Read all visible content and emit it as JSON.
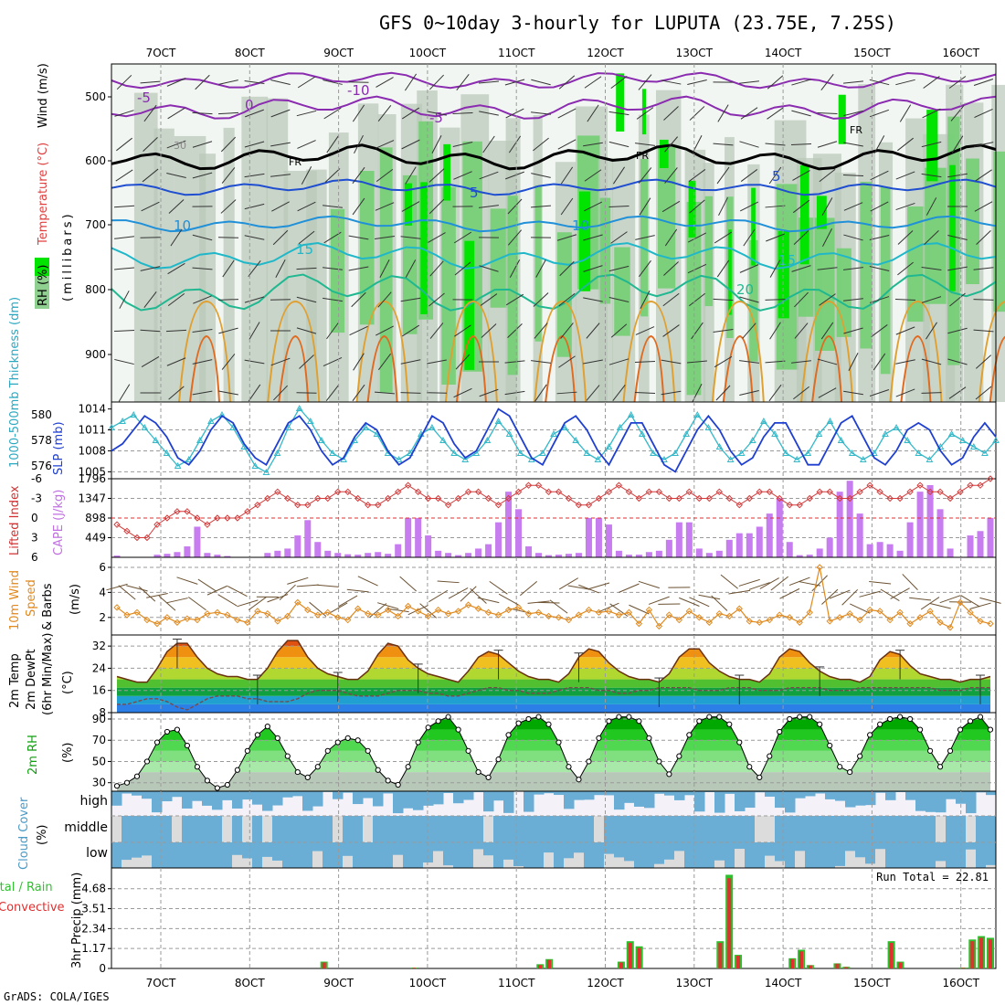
{
  "title": "GFS 0~10day 3-hourly for LUPUTA (23.75E, 7.25S)",
  "footer": "GrADS: COLA/IGES",
  "x_labels": [
    "7OCT",
    "8OCT",
    "9OCT",
    "10OCT",
    "11OCT",
    "12OCT",
    "13OCT",
    "14OCT",
    "15OCT",
    "16OCT"
  ],
  "colors": {
    "rh_green": "#00e400",
    "rh_mid": "#6ecf6e",
    "rh_grey": "#b9c7b9",
    "slp": "#1f3fd0",
    "thickness": "#35b8c8",
    "lifted": "#d33a3a",
    "cape": "#c77cf0",
    "wind": "#e08a20",
    "tmax": "#e05010",
    "rh2m": "#00c000",
    "cloud": "#6aaed6",
    "cloud_bg": "#dcdcdc",
    "precip_total": "#2dc02d",
    "precip_conv": "#e03030"
  },
  "panels": {
    "upper": {
      "label_rh": "RH (%)",
      "label_temp": "Temperature (°C)",
      "label_wind": "Wind (m/s)",
      "label_units": "(millibars)",
      "y_ticks": [
        "500",
        "600",
        "700",
        "800",
        "900"
      ],
      "contour_labels": {
        "t_m10": "-10",
        "t_m5a": "-5",
        "t_m5b": "-5",
        "t_0": "0",
        "t_5a": "5",
        "t_5b": "5",
        "t_10a": "10",
        "t_10b": "10",
        "t_15a": "15",
        "t_15b": "15",
        "t_20": "20",
        "fr1": "FR",
        "fr2": "FR",
        "fr3": "FR",
        "rh30": "30"
      }
    },
    "thick": {
      "label_left": "1000-500mb Thickness (dm)",
      "label_right": "SLP (mb)",
      "left_ticks": [
        "580",
        "578",
        "576"
      ],
      "right_ticks": [
        "1014",
        "1011",
        "1008",
        "1005"
      ]
    },
    "cape": {
      "label_left": "Lifted Index",
      "label_right": "CAPE (J/kg)",
      "left_ticks": [
        "-6",
        "-3",
        "0",
        "3",
        "6"
      ],
      "right_ticks": [
        "1796",
        "1347",
        "898",
        "449"
      ]
    },
    "wind": {
      "label_a": "10m Wind",
      "label_b": "Speed",
      "label_c": "& Barbs",
      "label_units": "(m/s)",
      "ticks": [
        "6",
        "4",
        "2"
      ]
    },
    "temp": {
      "label_a": "2m Temp",
      "label_b": "2m DewPt",
      "label_c": "(6hr Min/Max)",
      "label_units": "(°C)",
      "ticks": [
        "32",
        "24",
        "16",
        "8"
      ]
    },
    "rh": {
      "label_a": "2m RH",
      "label_units": "(%)",
      "ticks": [
        "90",
        "70",
        "50",
        "30"
      ]
    },
    "cloud": {
      "label_a": "Cloud Cover",
      "label_units": "(%)",
      "levels": [
        "high",
        "middle",
        "low"
      ]
    },
    "precip": {
      "label_a": "Total / Rain",
      "label_b": "Convective",
      "label_units": "3hr Precip (mm)",
      "ticks": [
        "4.68",
        "3.51",
        "2.34",
        "1.17",
        "0"
      ],
      "run_total": "Run Total = 22.81"
    }
  },
  "chart_data": [
    {
      "type": "line",
      "title": "1000-500mb Thickness (dm) / SLP (mb)",
      "x_start": "2020-10-06T12:00",
      "x_step_hours": 3,
      "series": [
        {
          "name": "SLP (mb)",
          "values": [
            1008,
            1009,
            1011,
            1013,
            1012,
            1010,
            1007,
            1006,
            1008,
            1011,
            1013,
            1012,
            1009,
            1007,
            1006,
            1009,
            1012,
            1013,
            1011,
            1008,
            1006,
            1007,
            1010,
            1012,
            1011,
            1008,
            1006,
            1007,
            1010,
            1013,
            1012,
            1009,
            1007,
            1008,
            1011,
            1014,
            1013,
            1010,
            1007,
            1006,
            1009,
            1012,
            1013,
            1011,
            1008,
            1006,
            1009,
            1012,
            1012,
            1009,
            1006,
            1005,
            1008,
            1011,
            1013,
            1011,
            1008,
            1006,
            1007,
            1010,
            1012,
            1012,
            1009,
            1006,
            1006,
            1009,
            1012,
            1013,
            1010,
            1007,
            1006,
            1008,
            1011,
            1012,
            1011,
            1008,
            1006,
            1007,
            1010,
            1012,
            1010
          ]
        },
        {
          "name": "1000-500mb Thickness (dm)",
          "values": [
            579,
            579.5,
            580,
            579,
            578,
            577,
            576,
            576.5,
            578,
            579.5,
            580,
            579,
            577.5,
            576,
            575.5,
            577,
            579,
            580.5,
            579.5,
            578,
            577,
            576.5,
            578,
            579,
            578.5,
            577,
            576.5,
            577,
            578.5,
            579,
            578,
            577,
            576.5,
            577,
            578,
            579.5,
            578.5,
            577,
            576.5,
            577,
            578.5,
            579,
            578,
            577,
            576.5,
            577.5,
            579,
            580,
            578.5,
            577,
            576.5,
            577,
            578.5,
            580,
            579,
            577.5,
            576.5,
            577,
            578,
            579.5,
            578.5,
            577,
            576.5,
            577,
            578.5,
            579.5,
            578,
            577,
            576.5,
            577,
            578.5,
            579,
            578,
            577,
            576.5,
            577.5,
            578.5,
            578,
            577.5,
            577,
            578
          ]
        }
      ],
      "ylim_left": [
        575,
        581
      ],
      "ylim_right": [
        1004,
        1015
      ]
    },
    {
      "type": "bar",
      "title": "Lifted Index / CAPE (J/kg)",
      "x_start": "2020-10-06T12:00",
      "x_step_hours": 3,
      "series": [
        {
          "name": "CAPE (J/kg)",
          "values": [
            40,
            0,
            0,
            0,
            60,
            80,
            120,
            250,
            700,
            100,
            60,
            30,
            0,
            0,
            0,
            100,
            150,
            200,
            500,
            850,
            350,
            150,
            100,
            70,
            60,
            100,
            120,
            80,
            300,
            900,
            900,
            500,
            150,
            100,
            50,
            100,
            200,
            300,
            800,
            1500,
            1100,
            250,
            100,
            50,
            60,
            80,
            100,
            900,
            900,
            750,
            150,
            60,
            60,
            120,
            150,
            400,
            800,
            800,
            200,
            100,
            150,
            400,
            550,
            550,
            700,
            1000,
            1350,
            350,
            50,
            60,
            200,
            450,
            1500,
            1750,
            1000,
            300,
            350,
            300,
            150,
            800,
            1500,
            1650,
            1100,
            200,
            0,
            500,
            600,
            900
          ]
        },
        {
          "name": "Lifted Index",
          "values": [
            1,
            2,
            3,
            3,
            1,
            0,
            -1,
            -1,
            0,
            1,
            0,
            0,
            0,
            -1,
            -2,
            -3,
            -4,
            -3,
            -2,
            -2,
            -3,
            -3,
            -4,
            -4,
            -3,
            -2,
            -2,
            -3,
            -4,
            -5,
            -4,
            -3,
            -3,
            -2,
            -3,
            -4,
            -4,
            -3,
            -2,
            -3,
            -4,
            -5,
            -5,
            -4,
            -4,
            -3,
            -2,
            -2,
            -3,
            -4,
            -5,
            -4,
            -3,
            -4,
            -4,
            -3,
            -3,
            -4,
            -3,
            -3,
            -4,
            -3,
            -2,
            -3,
            -4,
            -4,
            -3,
            -2,
            -2,
            -3,
            -4,
            -4,
            -3,
            -3,
            -4,
            -5,
            -4,
            -3,
            -3,
            -4,
            -5,
            -4,
            -4,
            -3,
            -4,
            -5,
            -5,
            -6
          ]
        }
      ],
      "ylim_left": [
        6,
        -6
      ],
      "ylim_right": [
        0,
        1796
      ]
    },
    {
      "type": "line",
      "title": "10m Wind Speed & Barbs (m/s)",
      "x_start": "2020-10-06T12:00",
      "x_step_hours": 3,
      "series": [
        {
          "name": "10m Wind Speed (m/s)",
          "values": [
            2.8,
            2.2,
            2.4,
            1.8,
            1.5,
            2.0,
            1.6,
            1.9,
            1.8,
            2.3,
            2.4,
            2.2,
            1.8,
            1.6,
            2.5,
            2.3,
            1.7,
            2.1,
            3.2,
            2.6,
            2.2,
            2.4,
            2.0,
            1.8,
            2.7,
            2.3,
            2.2,
            2.6,
            2.1,
            2.9,
            2.5,
            2.1,
            2.6,
            2.3,
            2.5,
            3.0,
            2.7,
            2.4,
            2.2,
            2.6,
            2.8,
            2.3,
            2.4,
            2.1,
            2.0,
            1.8,
            2.2,
            2.6,
            2.4,
            2.5,
            2.2,
            2.4,
            1.5,
            2.6,
            1.3,
            2.2,
            1.8,
            2.5,
            2.0,
            1.6,
            2.3,
            2.1,
            2.7,
            1.7,
            1.6,
            1.8,
            2.2,
            2.0,
            1.6,
            2.4,
            6.0,
            1.7,
            2.0,
            2.3,
            1.8,
            2.6,
            2.5,
            1.8,
            2.4,
            1.5,
            2.0,
            2.5,
            1.6,
            1.2,
            3.2,
            2.4,
            1.7,
            1.5
          ]
        }
      ],
      "ylim": [
        0.6,
        6.8
      ]
    },
    {
      "type": "area",
      "title": "2m Temp / 2m DewPt (6hr Min/Max) (°C)",
      "x_start": "2020-10-06T12:00",
      "x_step_hours": 3,
      "series": [
        {
          "name": "2m Temp (°C)",
          "values": [
            21,
            20,
            19,
            19,
            24,
            30,
            33,
            33,
            28,
            24,
            22,
            21,
            21,
            20,
            20,
            24,
            30,
            34,
            34,
            28,
            24,
            22,
            21,
            20,
            20,
            23,
            29,
            33,
            32,
            27,
            24,
            22,
            21,
            20,
            19,
            23,
            28,
            30,
            29,
            26,
            23,
            21,
            20,
            20,
            19,
            22,
            28,
            31,
            30,
            26,
            23,
            21,
            20,
            20,
            19,
            22,
            28,
            31,
            31,
            26,
            23,
            21,
            20,
            20,
            19,
            22,
            28,
            31,
            30,
            26,
            23,
            21,
            20,
            20,
            19,
            21,
            27,
            30,
            29,
            25,
            22,
            21,
            20,
            20,
            19,
            20,
            20,
            21
          ]
        },
        {
          "name": "2m DewPt (°C)",
          "values": [
            11,
            11,
            12,
            13,
            13,
            12,
            10,
            9,
            11,
            13,
            14,
            14,
            14,
            13,
            13,
            12,
            12,
            12,
            13,
            15,
            16,
            16,
            16,
            15,
            14,
            14,
            14,
            15,
            16,
            16,
            16,
            15,
            15,
            14,
            14,
            15,
            16,
            17,
            17,
            16,
            16,
            15,
            15,
            15,
            16,
            17,
            17,
            17,
            16,
            16,
            15,
            15,
            16,
            16,
            17,
            17,
            17,
            17,
            16,
            16,
            16,
            17,
            17,
            17,
            16,
            16,
            16,
            17,
            17,
            17,
            17,
            16,
            16,
            16,
            17,
            17,
            17,
            17,
            17,
            17,
            17,
            17,
            16,
            16,
            16,
            17,
            17,
            17
          ]
        }
      ],
      "ylim": [
        8,
        36
      ]
    },
    {
      "type": "area",
      "title": "2m RH (%)",
      "x_start": "2020-10-06T12:00",
      "x_step_hours": 3,
      "series": [
        {
          "name": "2m RH (%)",
          "values": [
            27,
            30,
            36,
            50,
            68,
            78,
            80,
            65,
            45,
            32,
            25,
            28,
            42,
            60,
            75,
            83,
            72,
            55,
            40,
            35,
            45,
            60,
            68,
            72,
            70,
            60,
            42,
            32,
            28,
            45,
            68,
            82,
            88,
            92,
            80,
            60,
            40,
            35,
            52,
            75,
            86,
            90,
            92,
            85,
            68,
            45,
            33,
            50,
            72,
            88,
            92,
            92,
            88,
            72,
            50,
            38,
            55,
            75,
            88,
            92,
            92,
            85,
            68,
            45,
            35,
            55,
            78,
            90,
            92,
            92,
            85,
            65,
            45,
            40,
            55,
            75,
            85,
            90,
            92,
            90,
            80,
            60,
            45,
            60,
            80,
            88,
            92,
            80
          ]
        }
      ],
      "ylim": [
        22,
        96
      ]
    },
    {
      "type": "bar",
      "title": "3hr Precip (mm)",
      "x_start": "2020-10-06T12:00",
      "x_step_hours": 3,
      "series": [
        {
          "name": "Total / Rain (mm)",
          "values": [
            0,
            0,
            0,
            0,
            0,
            0,
            0,
            0,
            0,
            0,
            0,
            0,
            0,
            0,
            0,
            0,
            0,
            0,
            0,
            0,
            0,
            0,
            0,
            0.4,
            0,
            0,
            0,
            0,
            0,
            0,
            0,
            0,
            0,
            0.05,
            0,
            0,
            0,
            0,
            0,
            0,
            0,
            0,
            0,
            0,
            0,
            0,
            0,
            0.25,
            0.55,
            0,
            0,
            0,
            0,
            0,
            0,
            0,
            0.4,
            1.6,
            1.3,
            0,
            0,
            0,
            0,
            0,
            0,
            0,
            0,
            1.6,
            5.5,
            0.8,
            0,
            0,
            0,
            0,
            0,
            0.6,
            1.1,
            0.2,
            0,
            0,
            0.3,
            0.1,
            0,
            0,
            0,
            0,
            1.6,
            0.4,
            0,
            0,
            0,
            0,
            0,
            0,
            0.05,
            1.7,
            1.9,
            1.8
          ]
        },
        {
          "name": "Convective (mm)",
          "values": [
            0,
            0,
            0,
            0,
            0,
            0,
            0,
            0,
            0,
            0,
            0,
            0,
            0,
            0,
            0,
            0,
            0,
            0,
            0,
            0,
            0,
            0,
            0,
            0.35,
            0,
            0,
            0,
            0,
            0,
            0,
            0,
            0,
            0,
            0.04,
            0,
            0,
            0,
            0,
            0,
            0,
            0,
            0,
            0,
            0,
            0,
            0,
            0,
            0.2,
            0.5,
            0,
            0,
            0,
            0,
            0,
            0,
            0,
            0.35,
            1.5,
            1.2,
            0,
            0,
            0,
            0,
            0,
            0,
            0,
            0,
            1.5,
            5.3,
            0.75,
            0,
            0,
            0,
            0,
            0,
            0.55,
            1.0,
            0.18,
            0,
            0,
            0.28,
            0.08,
            0,
            0,
            0,
            0,
            1.5,
            0.35,
            0,
            0,
            0,
            0,
            0,
            0,
            0.04,
            1.6,
            1.8,
            1.7
          ]
        }
      ],
      "ylim": [
        0,
        5.9
      ]
    }
  ]
}
